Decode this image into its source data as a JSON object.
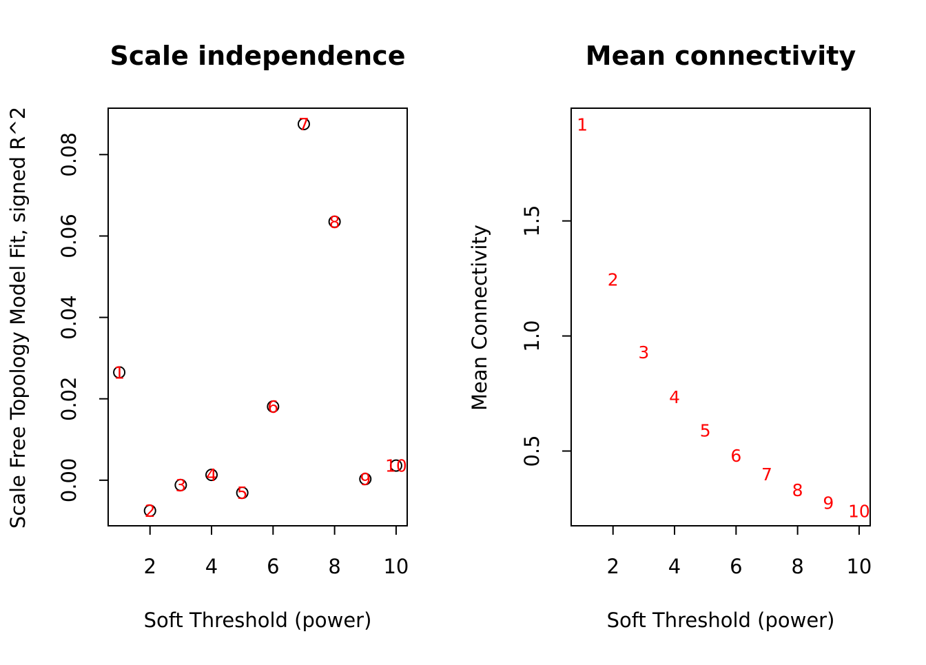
{
  "colors": {
    "point": "#000000",
    "label": "#ff0000",
    "axis": "#000000"
  },
  "chart_data": [
    {
      "type": "scatter",
      "title": "Scale independence",
      "xlabel": "Soft Threshold (power)",
      "ylabel": "Scale Free Topology Model Fit, signed R^2",
      "xlim": [
        0.64,
        10.36
      ],
      "ylim": [
        -0.0112,
        0.0914
      ],
      "xticks": [
        2,
        4,
        6,
        8,
        10
      ],
      "xtick_labels": [
        "2",
        "4",
        "6",
        "8",
        "10"
      ],
      "yticks": [
        0.0,
        0.02,
        0.04,
        0.06,
        0.08
      ],
      "ytick_labels": [
        "0.00",
        "0.02",
        "0.04",
        "0.06",
        "0.08"
      ],
      "show_markers": true,
      "x": [
        1,
        2,
        3,
        4,
        5,
        6,
        7,
        8,
        9,
        10
      ],
      "y": [
        0.0265,
        -0.0075,
        -0.0012,
        0.0013,
        -0.0031,
        0.0181,
        0.0875,
        0.0635,
        0.0003,
        0.0036
      ],
      "point_labels": [
        "1",
        "2",
        "3",
        "4",
        "5",
        "6",
        "7",
        "8",
        "9",
        "10"
      ]
    },
    {
      "type": "scatter",
      "title": "Mean connectivity",
      "xlabel": "Soft Threshold (power)",
      "ylabel": "Mean Connectivity",
      "xlim": [
        0.64,
        10.36
      ],
      "ylim": [
        0.175,
        1.99
      ],
      "xticks": [
        2,
        4,
        6,
        8,
        10
      ],
      "xtick_labels": [
        "2",
        "4",
        "6",
        "8",
        "10"
      ],
      "yticks": [
        0.5,
        1.0,
        1.5
      ],
      "ytick_labels": [
        "0.5",
        "1.0",
        "1.5"
      ],
      "show_markers": false,
      "x": [
        1,
        2,
        3,
        4,
        5,
        6,
        7,
        8,
        9,
        10
      ],
      "y": [
        1.92,
        1.245,
        0.93,
        0.735,
        0.59,
        0.48,
        0.4,
        0.33,
        0.275,
        0.24
      ],
      "point_labels": [
        "1",
        "2",
        "3",
        "4",
        "5",
        "6",
        "7",
        "8",
        "9",
        "10"
      ]
    }
  ]
}
